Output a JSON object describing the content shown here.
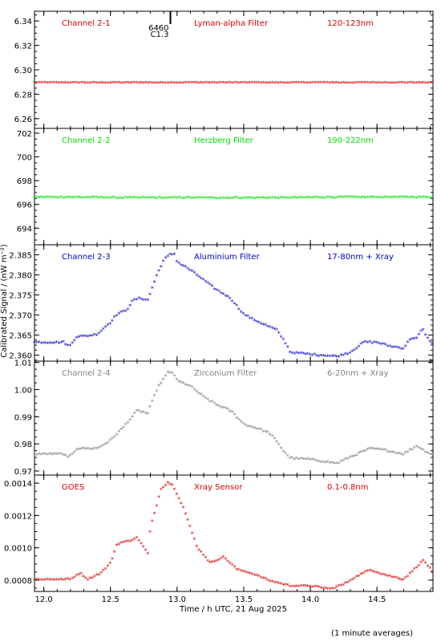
{
  "figure": {
    "ylabel": "Calibrated Signal / (nW m⁻²)",
    "xlabel": "Time / h UTC, 21 Aug 2025",
    "footnote": "(1 minute averages)",
    "xlim": [
      11.93,
      14.92
    ],
    "xticks": [
      12.0,
      12.5,
      13.0,
      13.5,
      14.0,
      14.5
    ],
    "xtick_labels": [
      "12.0",
      "12.5",
      "13.0",
      "13.5",
      "14.0",
      "14.5"
    ],
    "event_marker": {
      "x": 12.95,
      "label_top": "6460",
      "label_bottom": "C1.3"
    }
  },
  "chart_data": [
    {
      "type": "scatter",
      "channel": "Channel 2-1",
      "filter": "Lyman-alpha Filter",
      "band": "120-123nm",
      "color": "#dd0000",
      "ylim": [
        6.252,
        6.348
      ],
      "yticks": [
        6.26,
        6.28,
        6.3,
        6.32,
        6.34
      ],
      "ytick_labels": [
        "6.26",
        "6.28",
        "6.30",
        "6.32",
        "6.34"
      ],
      "profile": {
        "base": 6.289,
        "noise": 0.0002,
        "points": []
      }
    },
    {
      "type": "scatter",
      "channel": "Channel 2-2",
      "filter": "Herzberg Filter",
      "band": "190-222nm",
      "color": "#00dd00",
      "ylim": [
        692.6,
        702.4
      ],
      "yticks": [
        694,
        696,
        698,
        700,
        702
      ],
      "ytick_labels": [
        "694",
        "696",
        "698",
        "700",
        "702"
      ],
      "profile": {
        "base": 696.4,
        "noise": 0.05,
        "points": [
          [
            12.2,
            696.55
          ],
          [
            12.6,
            696.5
          ],
          [
            13.8,
            696.5
          ],
          [
            14.25,
            696.55
          ]
        ]
      }
    },
    {
      "type": "scatter",
      "channel": "Channel 2-3",
      "filter": "Aluminium Filter",
      "band": "17-80nm + Xray",
      "color": "#0000cc",
      "ylim": [
        2.3585,
        2.3875
      ],
      "yticks": [
        2.36,
        2.365,
        2.37,
        2.375,
        2.38,
        2.385
      ],
      "ytick_labels": [
        "2.360",
        "2.365",
        "2.370",
        "2.375",
        "2.380",
        "2.385"
      ],
      "profile": {
        "base": 2.363,
        "noise": 0.0002,
        "points": [
          [
            11.93,
            2.363
          ],
          [
            12.15,
            2.363
          ],
          [
            12.19,
            2.362
          ],
          [
            12.25,
            2.3645
          ],
          [
            12.3,
            2.3645
          ],
          [
            12.4,
            2.365
          ],
          [
            12.5,
            2.368
          ],
          [
            12.55,
            2.37
          ],
          [
            12.62,
            2.371
          ],
          [
            12.67,
            2.3735
          ],
          [
            12.72,
            2.374
          ],
          [
            12.78,
            2.3735
          ],
          [
            12.85,
            2.38
          ],
          [
            12.9,
            2.3835
          ],
          [
            12.95,
            2.385
          ],
          [
            12.98,
            2.385
          ],
          [
            13.0,
            2.383
          ],
          [
            13.1,
            2.381
          ],
          [
            13.2,
            2.3785
          ],
          [
            13.3,
            2.376
          ],
          [
            13.4,
            2.374
          ],
          [
            13.5,
            2.37
          ],
          [
            13.55,
            2.369
          ],
          [
            13.65,
            2.3675
          ],
          [
            13.75,
            2.366
          ],
          [
            13.82,
            2.3625
          ],
          [
            13.85,
            2.3605
          ],
          [
            14.0,
            2.36
          ],
          [
            14.2,
            2.3595
          ],
          [
            14.3,
            2.3605
          ],
          [
            14.4,
            2.363
          ],
          [
            14.5,
            2.363
          ],
          [
            14.6,
            2.362
          ],
          [
            14.7,
            2.3615
          ],
          [
            14.75,
            2.364
          ],
          [
            14.8,
            2.364
          ],
          [
            14.84,
            2.3665
          ],
          [
            14.88,
            2.364
          ],
          [
            14.92,
            2.3625
          ]
        ]
      }
    },
    {
      "type": "scatter",
      "channel": "Channel 2-4",
      "filter": "Zirconium Filter",
      "band": "6-20nm + Xray",
      "color": "#808080",
      "ylim": [
        0.9685,
        1.0105
      ],
      "yticks": [
        0.97,
        0.98,
        0.99,
        1.0,
        1.01
      ],
      "ytick_labels": [
        "0.97",
        "0.98",
        "0.99",
        "1.00",
        "1.01"
      ],
      "profile": {
        "base": 0.976,
        "noise": 0.0003,
        "points": [
          [
            11.93,
            0.976
          ],
          [
            12.15,
            0.976
          ],
          [
            12.18,
            0.9745
          ],
          [
            12.25,
            0.978
          ],
          [
            12.4,
            0.978
          ],
          [
            12.5,
            0.981
          ],
          [
            12.6,
            0.986
          ],
          [
            12.7,
            0.992
          ],
          [
            12.78,
            0.991
          ],
          [
            12.85,
            1.0
          ],
          [
            12.93,
            1.006
          ],
          [
            12.97,
            1.006
          ],
          [
            13.0,
            1.003
          ],
          [
            13.1,
            1.001
          ],
          [
            13.2,
            0.997
          ],
          [
            13.3,
            0.994
          ],
          [
            13.4,
            0.992
          ],
          [
            13.5,
            0.987
          ],
          [
            13.6,
            0.9855
          ],
          [
            13.7,
            0.9835
          ],
          [
            13.8,
            0.977
          ],
          [
            13.85,
            0.9745
          ],
          [
            14.0,
            0.974
          ],
          [
            14.2,
            0.9725
          ],
          [
            14.35,
            0.976
          ],
          [
            14.45,
            0.978
          ],
          [
            14.55,
            0.9775
          ],
          [
            14.7,
            0.976
          ],
          [
            14.8,
            0.979
          ],
          [
            14.85,
            0.9775
          ],
          [
            14.9,
            0.976
          ]
        ]
      }
    },
    {
      "type": "scatter",
      "channel": "GOES",
      "filter": "Xray Sensor",
      "band": "0.1-0.8nm",
      "color": "#dd0000",
      "ylim": [
        0.00073,
        0.00145
      ],
      "yticks": [
        0.0008,
        0.001,
        0.0012,
        0.0014
      ],
      "ytick_labels": [
        "0.0008",
        "0.0010",
        "0.0012",
        "0.0014"
      ],
      "profile": {
        "base": 0.0008,
        "noise": 4e-06,
        "points": [
          [
            11.93,
            0.0008
          ],
          [
            12.2,
            0.0008
          ],
          [
            12.27,
            0.00084
          ],
          [
            12.33,
            0.0008
          ],
          [
            12.43,
            0.00084
          ],
          [
            12.5,
            0.0009
          ],
          [
            12.55,
            0.00102
          ],
          [
            12.65,
            0.00104
          ],
          [
            12.7,
            0.00106
          ],
          [
            12.78,
            0.00096
          ],
          [
            12.8,
            0.00112
          ],
          [
            12.88,
            0.00136
          ],
          [
            12.93,
            0.0014
          ],
          [
            12.97,
            0.00138
          ],
          [
            13.05,
            0.00124
          ],
          [
            13.15,
            0.001
          ],
          [
            13.25,
            0.0009
          ],
          [
            13.35,
            0.00094
          ],
          [
            13.45,
            0.00086
          ],
          [
            13.55,
            0.00084
          ],
          [
            13.7,
            0.00079
          ],
          [
            13.85,
            0.00076
          ],
          [
            14.0,
            0.00076
          ],
          [
            14.15,
            0.00074
          ],
          [
            14.25,
            0.00077
          ],
          [
            14.35,
            0.00082
          ],
          [
            14.45,
            0.00086
          ],
          [
            14.55,
            0.00083
          ],
          [
            14.7,
            0.0008
          ],
          [
            14.8,
            0.00088
          ],
          [
            14.85,
            0.00092
          ],
          [
            14.92,
            0.00084
          ]
        ]
      }
    }
  ]
}
